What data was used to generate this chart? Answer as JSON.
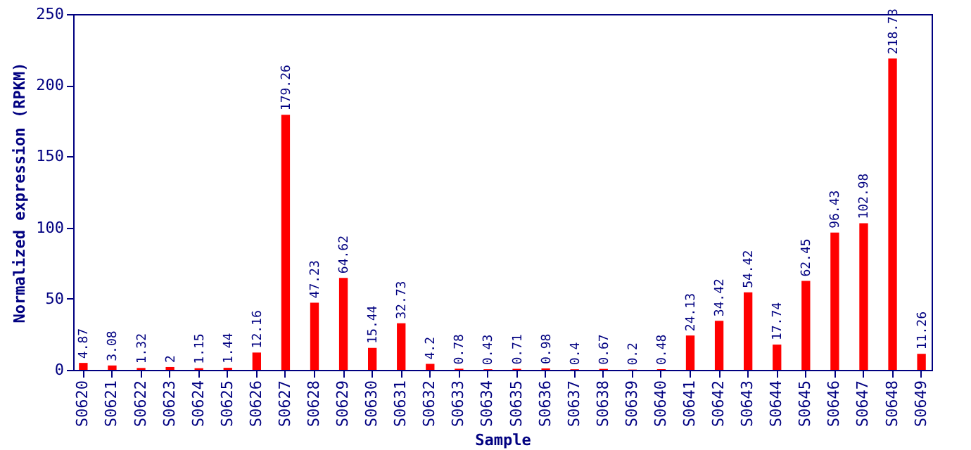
{
  "chart_data": {
    "type": "bar",
    "xlabel": "Sample",
    "ylabel": "Normalized expression (RPKM)",
    "categories": [
      "S0620",
      "S0621",
      "S0622",
      "S0623",
      "S0624",
      "S0625",
      "S0626",
      "S0627",
      "S0628",
      "S0629",
      "S0630",
      "S0631",
      "S0632",
      "S0633",
      "S0634",
      "S0635",
      "S0636",
      "S0637",
      "S0638",
      "S0639",
      "S0640",
      "S0641",
      "S0642",
      "S0643",
      "S0644",
      "S0645",
      "S0646",
      "S0647",
      "S0648",
      "S0649"
    ],
    "values": [
      4.87,
      3.08,
      1.32,
      2,
      1.15,
      1.44,
      12.16,
      179.26,
      47.23,
      64.62,
      15.44,
      32.73,
      4.2,
      0.78,
      0.43,
      0.71,
      0.98,
      0.4,
      0.67,
      0.2,
      0.48,
      24.13,
      34.42,
      54.42,
      17.74,
      62.45,
      96.43,
      102.98,
      218.73,
      11.26
    ],
    "color": "#ff0000",
    "ylim": [
      0,
      250
    ],
    "yticks": [
      0,
      50,
      100,
      150,
      200,
      250
    ],
    "grid": false,
    "data_labels": true
  }
}
